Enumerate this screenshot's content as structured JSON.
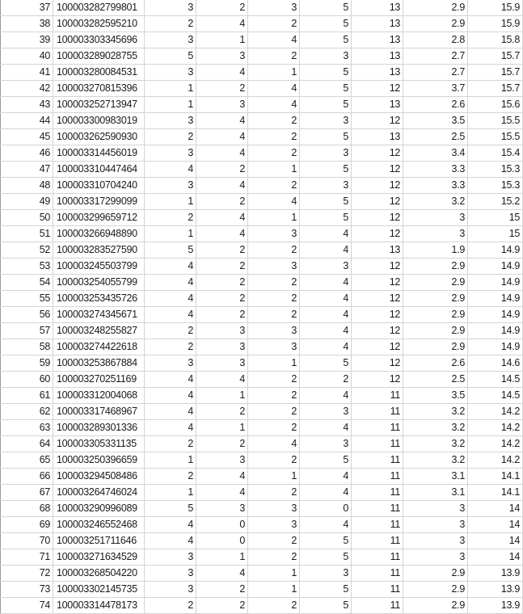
{
  "sheet": {
    "rows": [
      {
        "n": "37",
        "cells": [
          "100003282799801",
          "3",
          "2",
          "3",
          "5",
          "13",
          "2.9",
          "15.9"
        ]
      },
      {
        "n": "38",
        "cells": [
          "100003282595210",
          "2",
          "4",
          "2",
          "5",
          "13",
          "2.9",
          "15.9"
        ]
      },
      {
        "n": "39",
        "cells": [
          "100003303345696",
          "3",
          "1",
          "4",
          "5",
          "13",
          "2.8",
          "15.8"
        ]
      },
      {
        "n": "40",
        "cells": [
          "100003289028755",
          "5",
          "3",
          "2",
          "3",
          "13",
          "2.7",
          "15.7"
        ]
      },
      {
        "n": "41",
        "cells": [
          "100003280084531",
          "3",
          "4",
          "1",
          "5",
          "13",
          "2.7",
          "15.7"
        ]
      },
      {
        "n": "42",
        "cells": [
          "100003270815396",
          "1",
          "2",
          "4",
          "5",
          "12",
          "3.7",
          "15.7"
        ]
      },
      {
        "n": "43",
        "cells": [
          "100003252713947",
          "1",
          "3",
          "4",
          "5",
          "13",
          "2.6",
          "15.6"
        ]
      },
      {
        "n": "44",
        "cells": [
          "100003300983019",
          "3",
          "4",
          "2",
          "3",
          "12",
          "3.5",
          "15.5"
        ]
      },
      {
        "n": "45",
        "cells": [
          "100003262590930",
          "2",
          "4",
          "2",
          "5",
          "13",
          "2.5",
          "15.5"
        ]
      },
      {
        "n": "46",
        "cells": [
          "100003314456019",
          "3",
          "4",
          "2",
          "3",
          "12",
          "3.4",
          "15.4"
        ]
      },
      {
        "n": "47",
        "cells": [
          "100003310447464",
          "4",
          "2",
          "1",
          "5",
          "12",
          "3.3",
          "15.3"
        ]
      },
      {
        "n": "48",
        "cells": [
          "100003310704240",
          "3",
          "4",
          "2",
          "3",
          "12",
          "3.3",
          "15.3"
        ]
      },
      {
        "n": "49",
        "cells": [
          "100003317299099",
          "1",
          "2",
          "4",
          "5",
          "12",
          "3.2",
          "15.2"
        ]
      },
      {
        "n": "50",
        "cells": [
          "100003299659712",
          "2",
          "4",
          "1",
          "5",
          "12",
          "3",
          "15"
        ]
      },
      {
        "n": "51",
        "cells": [
          "100003266948890",
          "1",
          "4",
          "3",
          "4",
          "12",
          "3",
          "15"
        ]
      },
      {
        "n": "52",
        "cells": [
          "100003283527590",
          "5",
          "2",
          "2",
          "4",
          "13",
          "1.9",
          "14.9"
        ]
      },
      {
        "n": "53",
        "cells": [
          "100003245503799",
          "4",
          "2",
          "3",
          "3",
          "12",
          "2.9",
          "14.9"
        ]
      },
      {
        "n": "54",
        "cells": [
          "100003254055799",
          "4",
          "2",
          "2",
          "4",
          "12",
          "2.9",
          "14.9"
        ]
      },
      {
        "n": "55",
        "cells": [
          "100003253435726",
          "4",
          "2",
          "2",
          "4",
          "12",
          "2.9",
          "14.9"
        ]
      },
      {
        "n": "56",
        "cells": [
          "100003274345671",
          "4",
          "2",
          "2",
          "4",
          "12",
          "2.9",
          "14.9"
        ]
      },
      {
        "n": "57",
        "cells": [
          "100003248255827",
          "2",
          "3",
          "3",
          "4",
          "12",
          "2.9",
          "14.9"
        ]
      },
      {
        "n": "58",
        "cells": [
          "100003274422618",
          "2",
          "3",
          "3",
          "4",
          "12",
          "2.9",
          "14.9"
        ]
      },
      {
        "n": "59",
        "cells": [
          "100003253867884",
          "3",
          "3",
          "1",
          "5",
          "12",
          "2.6",
          "14.6"
        ]
      },
      {
        "n": "60",
        "cells": [
          "100003270251169",
          "4",
          "4",
          "2",
          "2",
          "12",
          "2.5",
          "14.5"
        ]
      },
      {
        "n": "61",
        "cells": [
          "100003312004068",
          "4",
          "1",
          "2",
          "4",
          "11",
          "3.5",
          "14.5"
        ]
      },
      {
        "n": "62",
        "cells": [
          "100003317468967",
          "4",
          "2",
          "2",
          "3",
          "11",
          "3.2",
          "14.2"
        ]
      },
      {
        "n": "63",
        "cells": [
          "100003289301336",
          "4",
          "1",
          "2",
          "4",
          "11",
          "3.2",
          "14.2"
        ]
      },
      {
        "n": "64",
        "cells": [
          "100003305331135",
          "2",
          "2",
          "4",
          "3",
          "11",
          "3.2",
          "14.2"
        ]
      },
      {
        "n": "65",
        "cells": [
          "100003250396659",
          "1",
          "3",
          "2",
          "5",
          "11",
          "3.2",
          "14.2"
        ]
      },
      {
        "n": "66",
        "cells": [
          "100003294508486",
          "2",
          "4",
          "1",
          "4",
          "11",
          "3.1",
          "14.1"
        ]
      },
      {
        "n": "67",
        "cells": [
          "100003264746024",
          "1",
          "4",
          "2",
          "4",
          "11",
          "3.1",
          "14.1"
        ]
      },
      {
        "n": "68",
        "cells": [
          "100003290996089",
          "5",
          "3",
          "3",
          "0",
          "11",
          "3",
          "14"
        ]
      },
      {
        "n": "69",
        "cells": [
          "100003246552468",
          "4",
          "0",
          "3",
          "4",
          "11",
          "3",
          "14"
        ]
      },
      {
        "n": "70",
        "cells": [
          "100003251711646",
          "4",
          "0",
          "2",
          "5",
          "11",
          "3",
          "14"
        ]
      },
      {
        "n": "71",
        "cells": [
          "100003271634529",
          "3",
          "1",
          "2",
          "5",
          "11",
          "3",
          "14"
        ]
      },
      {
        "n": "72",
        "cells": [
          "100003268504220",
          "3",
          "4",
          "1",
          "3",
          "11",
          "2.9",
          "13.9"
        ]
      },
      {
        "n": "73",
        "cells": [
          "100003302145735",
          "3",
          "2",
          "1",
          "5",
          "11",
          "2.9",
          "13.9"
        ]
      },
      {
        "n": "74",
        "cells": [
          "100003314478173",
          "2",
          "2",
          "2",
          "5",
          "11",
          "2.9",
          "13.9"
        ]
      }
    ]
  }
}
